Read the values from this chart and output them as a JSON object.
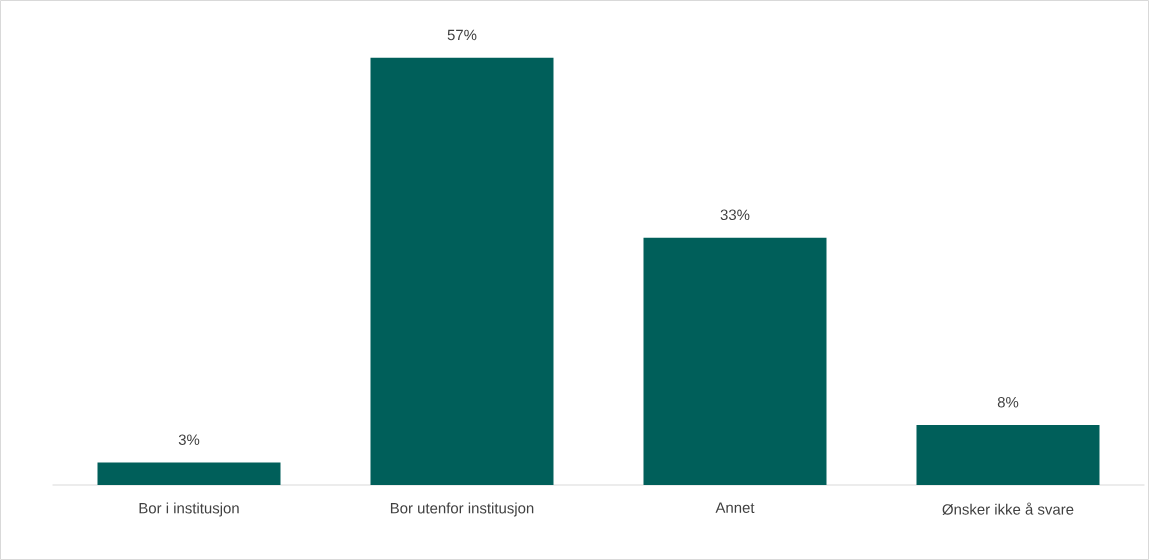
{
  "chart_data": {
    "type": "bar",
    "categories": [
      "Bor i institusjon",
      "Bor utenfor institusjon",
      "Annet",
      "Ønsker ikke å svare"
    ],
    "values": [
      3,
      57,
      33,
      8
    ],
    "value_labels": [
      "3%",
      "57%",
      "33%",
      "8%"
    ],
    "color": "#005f5a"
  }
}
